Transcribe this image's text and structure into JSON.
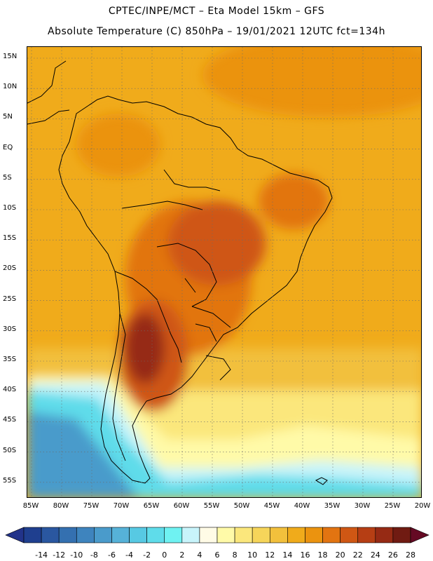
{
  "header": {
    "title_line1": "CPTEC/INPE/MCT –  Eta Model 15km – GFS",
    "title_line2": "Absolute Temperature (C) 850hPa – 19/01/2021 12UTC fct=134h"
  },
  "map": {
    "lat_labels": [
      "15N",
      "10N",
      "5N",
      "EQ",
      "5S",
      "10S",
      "15S",
      "20S",
      "25S",
      "30S",
      "35S",
      "40S",
      "45S",
      "50S",
      "55S"
    ],
    "lon_labels": [
      "85W",
      "80W",
      "75W",
      "70W",
      "65W",
      "60W",
      "55W",
      "50W",
      "45W",
      "40W",
      "35W",
      "30W",
      "25W",
      "20W"
    ]
  },
  "colorbar": {
    "labels": [
      "-14",
      "-12",
      "-10",
      "-8",
      "-6",
      "-4",
      "-2",
      "0",
      "2",
      "4",
      "6",
      "8",
      "10",
      "12",
      "14",
      "16",
      "18",
      "20",
      "22",
      "24",
      "26",
      "28"
    ],
    "colors": [
      "#1f3f8f",
      "#2a57a0",
      "#3470b0",
      "#3e84be",
      "#4a9bcb",
      "#56b2d8",
      "#57c9e3",
      "#5fdcea",
      "#6ff2f2",
      "#c8f4fb",
      "#fffbe6",
      "#fffaa8",
      "#fbe77c",
      "#f6d55a",
      "#f2c03c",
      "#f0ab1b",
      "#eb930f",
      "#e27411",
      "#cf5714",
      "#b63e14",
      "#962a14",
      "#701b12"
    ],
    "under_color": "#22338a",
    "over_color": "#650a24"
  }
}
